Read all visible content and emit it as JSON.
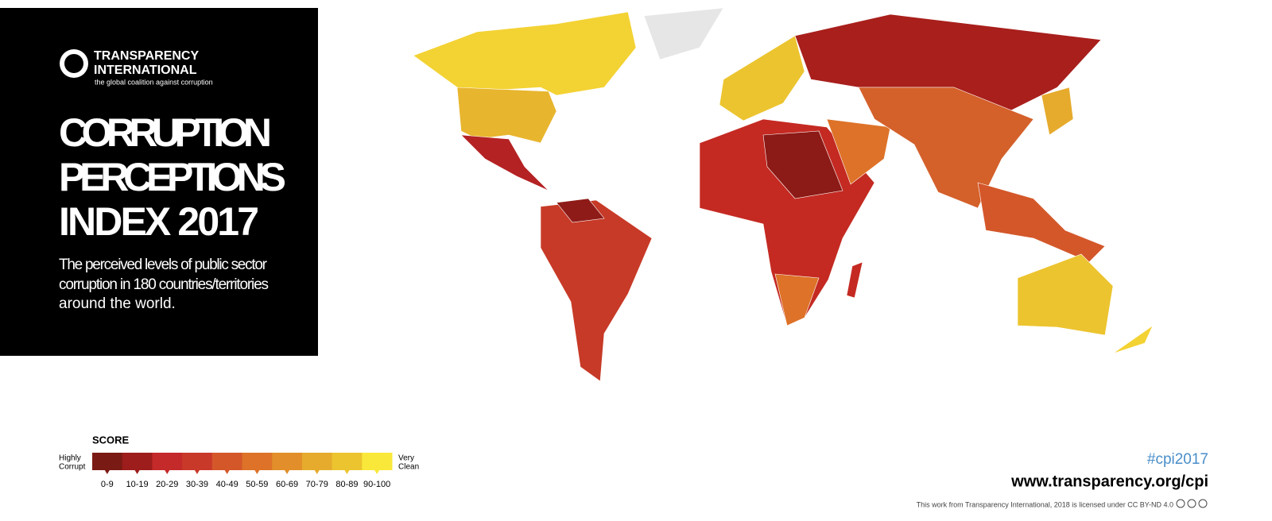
{
  "header": {
    "logo": [
      "TRANSPARENCY",
      "INTERNATIONAL"
    ],
    "tagline": "the global coalition against corruption",
    "title": [
      "CORRUPTION",
      "PERCEPTIONS",
      "INDEX 2017"
    ],
    "description": [
      "The perceived levels of public sector",
      "corruption in 180 countries/territories",
      "around the world."
    ]
  },
  "legend": {
    "title": "SCORE",
    "low_label": [
      "Highly",
      "Corrupt"
    ],
    "high_label": [
      "Very",
      "Clean"
    ],
    "bins": [
      "0-9",
      "10-19",
      "20-29",
      "30-39",
      "40-49",
      "50-59",
      "60-69",
      "70-79",
      "80-89",
      "90-100"
    ],
    "colors": [
      "#7a1a14",
      "#9c1d1b",
      "#c42a2a",
      "#c9392a",
      "#d4572a",
      "#dd7228",
      "#e28e2a",
      "#e6ab2d",
      "#ecc42f",
      "#f9e83a"
    ]
  },
  "footer": {
    "hashtag": "#cpi2017",
    "url": "www.transparency.org/cpi",
    "license": "This work from Transparency International, 2018 is licensed under CC BY-ND 4.0"
  }
}
